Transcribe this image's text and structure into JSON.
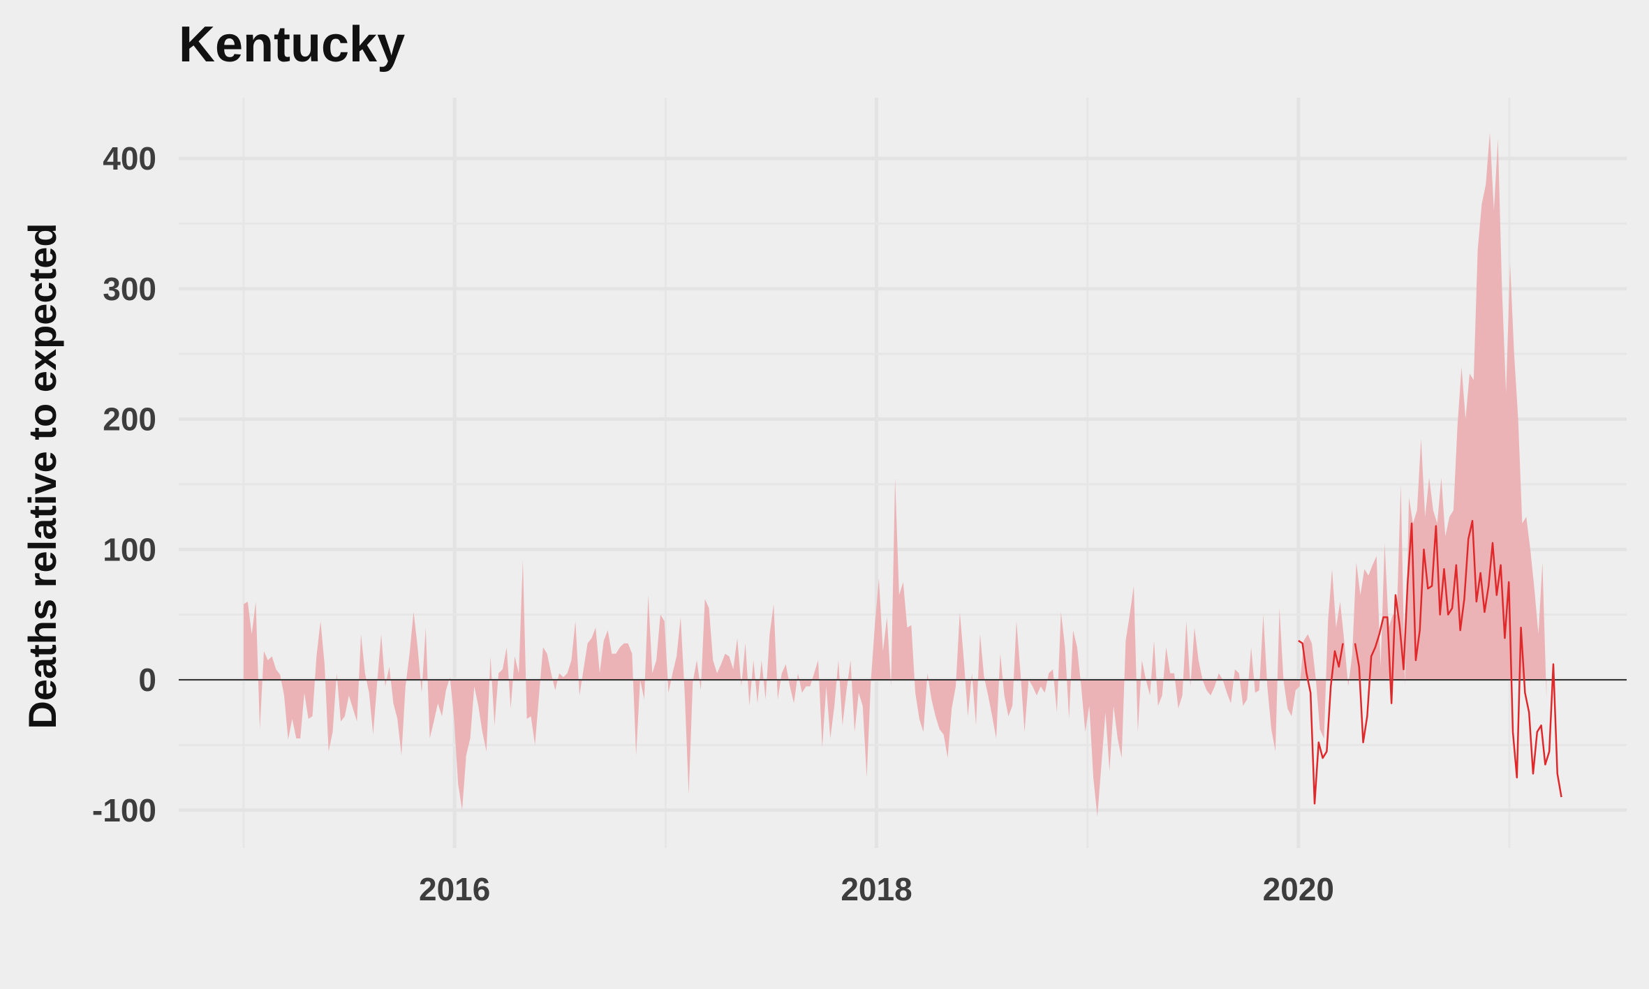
{
  "chart_data": {
    "type": "area",
    "title": "Kentucky",
    "xlabel": "",
    "ylabel": "Deaths relative to expected",
    "xlim": [
      2014.68,
      2021.55
    ],
    "ylim": [
      -130,
      450
    ],
    "x_ticks": [
      2016,
      2018,
      2020
    ],
    "x_tick_labels": [
      "2016",
      "2018",
      "2020"
    ],
    "y_ticks": [
      -100,
      0,
      100,
      200,
      300,
      400
    ],
    "y_tick_labels": [
      "-100",
      "0",
      "100",
      "200",
      "300",
      "400"
    ],
    "grid": true,
    "colors": {
      "area": "#ebb3b5",
      "line": "#e0282b",
      "zero_line": "#333333",
      "background": "#eeeeef"
    },
    "series": [
      {
        "type": "area",
        "x_start": 2015.0,
        "x_step_years": 0.01918,
        "values": [
          58,
          60,
          35,
          60,
          -38,
          22,
          15,
          18,
          8,
          4,
          -12,
          -46,
          -30,
          -45,
          -45,
          -10,
          -30,
          -28,
          18,
          45,
          12,
          -55,
          -40,
          5,
          -32,
          -28,
          -12,
          -22,
          -32,
          35,
          5,
          -10,
          -42,
          -2,
          35,
          -5,
          10,
          -18,
          -30,
          -58,
          -5,
          20,
          52,
          25,
          -10,
          40,
          -45,
          -32,
          -18,
          -28,
          -8,
          2,
          -30,
          -80,
          -100,
          -58,
          -45,
          -5,
          -20,
          -40,
          -55,
          18,
          -35,
          5,
          8,
          25,
          -22,
          18,
          5,
          92,
          -30,
          -28,
          -50,
          -12,
          25,
          20,
          5,
          -8,
          5,
          2,
          5,
          15,
          45,
          -12,
          8,
          28,
          32,
          40,
          5,
          30,
          38,
          20,
          20,
          25,
          28,
          28,
          20,
          -58,
          0,
          -15,
          65,
          5,
          15,
          50,
          45,
          -10,
          5,
          18,
          48,
          -10,
          -88,
          -2,
          15,
          -8,
          62,
          55,
          15,
          5,
          12,
          20,
          18,
          8,
          32,
          -5,
          28,
          -20,
          15,
          -18,
          15,
          -15,
          35,
          58,
          -15,
          5,
          12,
          -5,
          -18,
          5,
          -10,
          -5,
          -5,
          5,
          15,
          -52,
          -5,
          -45,
          -20,
          15,
          -35,
          -8,
          15,
          -40,
          -10,
          -20,
          -75,
          -2,
          42,
          78,
          22,
          48,
          -5,
          155,
          65,
          75,
          40,
          42,
          -10,
          -30,
          -40,
          5,
          -15,
          -28,
          -38,
          -42,
          -60,
          -22,
          -5,
          52,
          15,
          -28,
          5,
          -35,
          35,
          2,
          -12,
          -28,
          -45,
          20,
          -12,
          -28,
          -20,
          45,
          5,
          -40,
          0,
          -5,
          -12,
          -5,
          -10,
          5,
          8,
          -25,
          52,
          25,
          -30,
          38,
          25,
          -5,
          -40,
          -20,
          -75,
          -105,
          -65,
          -25,
          -70,
          -20,
          -45,
          -60,
          30,
          50,
          72,
          -40,
          15,
          0,
          -12,
          30,
          -20,
          -12,
          25,
          5,
          5,
          -22,
          -12,
          45,
          -5,
          40,
          15,
          0,
          -8,
          -12,
          -5,
          5,
          0,
          -10,
          -18,
          8,
          5,
          -20,
          -15,
          25,
          -10,
          -8,
          50,
          -5,
          -38,
          -55,
          55,
          0,
          -22,
          -28,
          -8,
          -5,
          30,
          35,
          28,
          0,
          -38,
          -45,
          45,
          85,
          40,
          60,
          30,
          -5,
          20,
          90,
          65,
          85,
          80,
          88,
          95,
          10,
          105,
          40,
          50,
          50,
          150,
          -5,
          140,
          120,
          130,
          185,
          125,
          155,
          130,
          120,
          155,
          110,
          125,
          130,
          195,
          240,
          200,
          235,
          230,
          330,
          365,
          380,
          420,
          360,
          415,
          300,
          220,
          320,
          250,
          200,
          120,
          125,
          100,
          70,
          35,
          90,
          -15
        ]
      },
      {
        "type": "line",
        "x_start": 2020.0,
        "x_step_years": 0.01918,
        "values": [
          30,
          28,
          5,
          -10,
          -95,
          -48,
          -60,
          -55,
          -5,
          22,
          10,
          28,
          null,
          null,
          28,
          10,
          -48,
          -28,
          18,
          25,
          35,
          48,
          48,
          -18,
          65,
          42,
          8,
          75,
          120,
          15,
          38,
          100,
          70,
          72,
          118,
          50,
          85,
          50,
          55,
          88,
          38,
          62,
          108,
          122,
          60,
          82,
          52,
          72,
          105,
          65,
          88,
          32,
          75,
          -40,
          -75,
          40,
          -10,
          -25,
          -72,
          -40,
          -35,
          -65,
          -55,
          12,
          -72,
          -90
        ]
      }
    ]
  }
}
